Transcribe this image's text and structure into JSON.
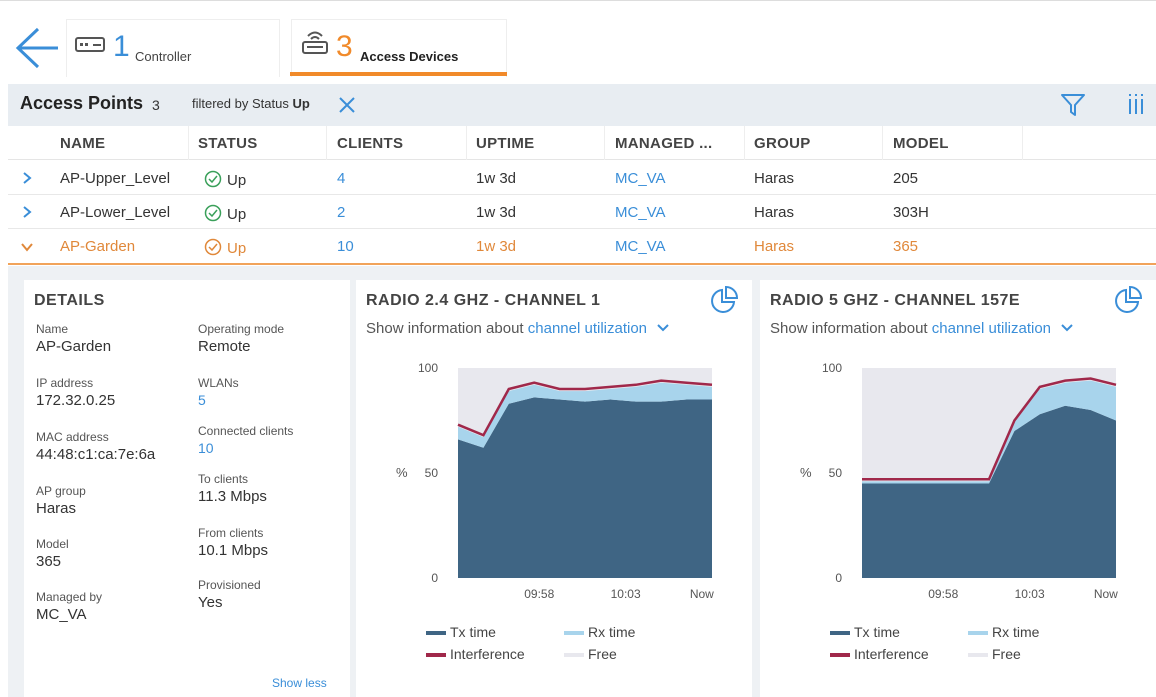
{
  "tabs": [
    {
      "count": "1",
      "label": "Controller"
    },
    {
      "count": "3",
      "label": "Access Devices"
    }
  ],
  "access_points": {
    "title": "Access Points",
    "count": "3",
    "filter_prefix": "filtered by",
    "filter_field": "Status",
    "filter_value": "Up"
  },
  "table": {
    "columns": [
      "NAME",
      "STATUS",
      "CLIENTS",
      "UPTIME",
      "MANAGED ...",
      "GROUP",
      "MODEL"
    ],
    "rows": [
      {
        "name": "AP-Upper_Level",
        "status": "Up",
        "clients": "4",
        "uptime": "1w 3d",
        "managed": "MC_VA",
        "group": "Haras",
        "model": "205"
      },
      {
        "name": "AP-Lower_Level",
        "status": "Up",
        "clients": "2",
        "uptime": "1w 3d",
        "managed": "MC_VA",
        "group": "Haras",
        "model": "303H"
      },
      {
        "name": "AP-Garden",
        "status": "Up",
        "clients": "10",
        "uptime": "1w 3d",
        "managed": "MC_VA",
        "group": "Haras",
        "model": "365"
      }
    ]
  },
  "details": {
    "title": "DETAILS",
    "left": [
      {
        "label": "Name",
        "value": "AP-Garden"
      },
      {
        "label": "IP address",
        "value": "172.32.0.25"
      },
      {
        "label": "MAC address",
        "value": "44:48:c1:ca:7e:6a"
      },
      {
        "label": "AP group",
        "value": "Haras"
      },
      {
        "label": "Model",
        "value": "365"
      },
      {
        "label": "Managed by",
        "value": "MC_VA"
      }
    ],
    "right": [
      {
        "label": "Operating mode",
        "value": "Remote"
      },
      {
        "label": "WLANs",
        "value": "5"
      },
      {
        "label": "Connected clients",
        "value": "10"
      },
      {
        "label": "To clients",
        "value": "11.3 Mbps"
      },
      {
        "label": "From clients",
        "value": "10.1 Mbps"
      },
      {
        "label": "Provisioned",
        "value": "Yes"
      }
    ],
    "show_less": "Show less"
  },
  "radios": [
    {
      "title": "RADIO 2.4 GHZ - CHANNEL 1",
      "show_prefix": "Show information about",
      "show_selected": "channel utilization"
    },
    {
      "title": "RADIO 5 GHZ - CHANNEL 157E",
      "show_prefix": "Show information about",
      "show_selected": "channel utilization"
    }
  ],
  "legend": [
    "Tx time",
    "Rx time",
    "Interference",
    "Free"
  ],
  "colors": {
    "tx": "#3f6584",
    "rx": "#a8d4ec",
    "interference": "#a0284a",
    "free": "#e8e8ee",
    "accent": "#f18a2a",
    "link": "#3a8ed8"
  },
  "chart_data": [
    {
      "type": "area",
      "title": "RADIO 2.4 GHZ - CHANNEL 1",
      "ylabel": "%",
      "ylim": [
        0,
        100
      ],
      "yticks": [
        "0",
        "50",
        "100"
      ],
      "xticks": [
        "09:58",
        "10:03",
        "Now"
      ],
      "x": [
        0,
        1,
        2,
        3,
        4,
        5,
        6,
        7,
        8,
        9,
        10
      ],
      "series": [
        {
          "name": "Tx time",
          "values": [
            66,
            62,
            83,
            86,
            85,
            84,
            85,
            84,
            84,
            85,
            85
          ]
        },
        {
          "name": "Rx time",
          "values": [
            6,
            5,
            6,
            6,
            4,
            5,
            5,
            7,
            9,
            7,
            6
          ]
        },
        {
          "name": "Interference",
          "values": [
            1,
            1,
            1,
            1,
            1,
            1,
            1,
            1,
            1,
            1,
            1
          ]
        },
        {
          "name": "Free",
          "values": [
            27,
            32,
            10,
            7,
            10,
            10,
            9,
            8,
            6,
            7,
            8
          ]
        }
      ]
    },
    {
      "type": "area",
      "title": "RADIO 5 GHZ - CHANNEL 157E",
      "ylabel": "%",
      "ylim": [
        0,
        100
      ],
      "yticks": [
        "0",
        "50",
        "100"
      ],
      "xticks": [
        "09:58",
        "10:03",
        "Now"
      ],
      "x": [
        0,
        1,
        2,
        3,
        4,
        5,
        6,
        7,
        8,
        9,
        10
      ],
      "series": [
        {
          "name": "Tx time",
          "values": [
            45,
            45,
            45,
            45,
            45,
            45,
            70,
            78,
            82,
            80,
            75
          ]
        },
        {
          "name": "Rx time",
          "values": [
            1,
            1,
            1,
            1,
            1,
            1,
            4,
            12,
            11,
            14,
            16
          ]
        },
        {
          "name": "Interference",
          "values": [
            1,
            1,
            1,
            1,
            1,
            1,
            1,
            1,
            1,
            1,
            1
          ]
        },
        {
          "name": "Free",
          "values": [
            53,
            53,
            53,
            53,
            53,
            53,
            25,
            9,
            6,
            5,
            8
          ]
        }
      ]
    }
  ]
}
